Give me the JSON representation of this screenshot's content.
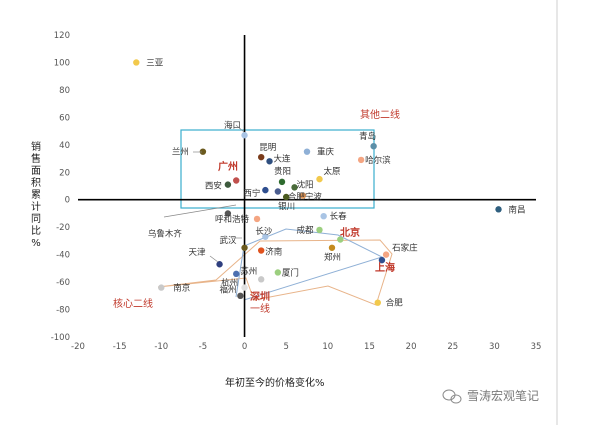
{
  "chart_data": {
    "type": "scatter",
    "xlabel": "年初至今的价格变化%",
    "ylabel": "销售面积累计同比%",
    "xlim": [
      -20,
      35
    ],
    "ylim": [
      -100,
      120
    ],
    "xticks": [
      -20,
      -15,
      -10,
      -5,
      0,
      5,
      10,
      15,
      20,
      25,
      30,
      35
    ],
    "yticks": [
      -100,
      -80,
      -60,
      -40,
      -20,
      0,
      20,
      40,
      60,
      80,
      100,
      120
    ],
    "grid": false,
    "points": [
      {
        "name": "三亚",
        "x": -13,
        "y": 100,
        "color": "#f2c94c"
      },
      {
        "name": "海口",
        "x": 0,
        "y": 47,
        "color": "#a9c4e4"
      },
      {
        "name": "兰州",
        "x": -5,
        "y": 35,
        "color": "#6b5a1e"
      },
      {
        "name": "昆明",
        "x": 2,
        "y": 31,
        "color": "#7a3b1a"
      },
      {
        "name": "大连",
        "x": 3,
        "y": 28,
        "color": "#2f4f7f"
      },
      {
        "name": "重庆",
        "x": 7.5,
        "y": 35,
        "color": "#8fb0d6"
      },
      {
        "name": "青岛",
        "x": 15.5,
        "y": 39,
        "color": "#5b8fa8"
      },
      {
        "name": "哈尔滨",
        "x": 14,
        "y": 29,
        "color": "#f4a582"
      },
      {
        "name": "广州",
        "x": -1,
        "y": 14,
        "color": "#c0504d"
      },
      {
        "name": "西安",
        "x": -2,
        "y": 11,
        "color": "#3d5a3d"
      },
      {
        "name": "贵阳",
        "x": 4.5,
        "y": 13,
        "color": "#2e6b2e"
      },
      {
        "name": "太原",
        "x": 9,
        "y": 15,
        "color": "#f2c94c"
      },
      {
        "name": "西宁",
        "x": 2.5,
        "y": 7,
        "color": "#2f4f8f"
      },
      {
        "name": "合肥",
        "x": 4,
        "y": 6,
        "color": "#4b5d8f"
      },
      {
        "name": "沈阳",
        "x": 6,
        "y": 9,
        "color": "#4a6b3a"
      },
      {
        "name": "宁波",
        "x": 7,
        "y": 3,
        "color": "#e69a5a"
      },
      {
        "name": "银川",
        "x": 5,
        "y": 2,
        "color": "#4a5a1e"
      },
      {
        "name": "南昌",
        "x": 30.5,
        "y": -7,
        "color": "#2f5f7f"
      },
      {
        "name": "乌鲁木齐",
        "x": -2,
        "y": -10,
        "color": "#555555"
      },
      {
        "name": "呼和浩特",
        "x": 1.5,
        "y": -14,
        "color": "#f4a582"
      },
      {
        "name": "长春",
        "x": 9.5,
        "y": -12,
        "color": "#a9c4e4"
      },
      {
        "name": "成都",
        "x": 9,
        "y": -22,
        "color": "#9ccf7f"
      },
      {
        "name": "长沙",
        "x": 2.5,
        "y": -27,
        "color": "#a9c4e4"
      },
      {
        "name": "武汉",
        "x": 0,
        "y": -35,
        "color": "#6b5a1e"
      },
      {
        "name": "济南",
        "x": 2,
        "y": -37,
        "color": "#e0521e"
      },
      {
        "name": "北京",
        "x": 11.5,
        "y": -29,
        "color": "#9ccf7f"
      },
      {
        "name": "郑州",
        "x": 10.5,
        "y": -35,
        "color": "#c48a1e"
      },
      {
        "name": "石家庄",
        "x": 17,
        "y": -40,
        "color": "#f4a582"
      },
      {
        "name": "上海",
        "x": 16.5,
        "y": -44,
        "color": "#2f4f8f"
      },
      {
        "name": "天津",
        "x": -3,
        "y": -47,
        "color": "#2f3f7f"
      },
      {
        "name": "苏州",
        "x": -1,
        "y": -54,
        "color": "#4b6fb0"
      },
      {
        "name": "厦门",
        "x": 4,
        "y": -53,
        "color": "#9ccf7f"
      },
      {
        "name": "杭州",
        "x": 2,
        "y": -58,
        "color": "#c9c9c9"
      },
      {
        "name": "南京",
        "x": -10,
        "y": -64,
        "color": "#c9c9c9"
      },
      {
        "name": "福州",
        "x": 0,
        "y": -64,
        "color": "#e0e0e0"
      },
      {
        "name": "深圳",
        "x": -0.5,
        "y": -70,
        "color": "#555555"
      },
      {
        "name": "合肥",
        "x": 16,
        "y": -75,
        "color": "#f2c94c"
      }
    ],
    "annotations": [
      "其他二线",
      "核心二线",
      "广州",
      "北京",
      "上海",
      "深圳",
      "一线"
    ]
  },
  "watermark": "雪涛宏观笔记"
}
